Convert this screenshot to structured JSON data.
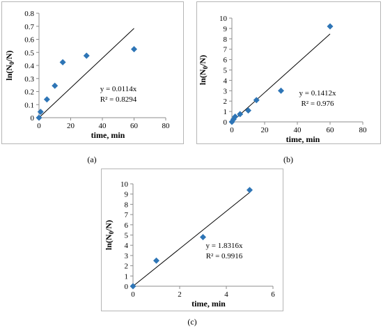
{
  "chart_data": [
    {
      "type": "scatter",
      "caption": "(a)",
      "xlabel": "time, min",
      "ylabel_main": "ln(N",
      "ylabel_sub": "0",
      "ylabel_end": "/N)",
      "xlim": [
        0,
        80
      ],
      "ylim": [
        0,
        0.8
      ],
      "xticks": [
        0,
        20,
        40,
        60,
        80
      ],
      "yticks": [
        0,
        0.1,
        0.2,
        0.3,
        0.4,
        0.5,
        0.6,
        0.7,
        0.8
      ],
      "xtick_labels": [
        "0",
        "20",
        "40",
        "60",
        "80"
      ],
      "ytick_labels": [
        "0",
        "0.1",
        "0.2",
        "0.3",
        "0.4",
        "0.5",
        "0.6",
        "0.7",
        "0.8"
      ],
      "points": [
        {
          "x": 0,
          "y": 0
        },
        {
          "x": 1,
          "y": 0.045
        },
        {
          "x": 5,
          "y": 0.14
        },
        {
          "x": 10,
          "y": 0.245
        },
        {
          "x": 15,
          "y": 0.425
        },
        {
          "x": 30,
          "y": 0.475
        },
        {
          "x": 60,
          "y": 0.525
        }
      ],
      "trendline": {
        "slope": 0.0114,
        "x_range": [
          0,
          60
        ]
      },
      "equation": "y = 0.0114x",
      "r_squared": "R² = 0.8294",
      "grid": false,
      "marker_color": "#2e75b6"
    },
    {
      "type": "scatter",
      "caption": "(b)",
      "xlabel": "time, min",
      "ylabel_main": "ln(N",
      "ylabel_sub": "0",
      "ylabel_end": "/N)",
      "xlim": [
        0,
        80
      ],
      "ylim": [
        0,
        10
      ],
      "xticks": [
        0,
        20,
        40,
        60,
        80
      ],
      "yticks": [
        0,
        1,
        2,
        3,
        4,
        5,
        6,
        7,
        8,
        9,
        10
      ],
      "xtick_labels": [
        "0",
        "20",
        "40",
        "60",
        "80"
      ],
      "ytick_labels": [
        "0",
        "1",
        "2",
        "3",
        "4",
        "5",
        "6",
        "7",
        "8",
        "9",
        "10"
      ],
      "points": [
        {
          "x": 0,
          "y": 0
        },
        {
          "x": 1,
          "y": 0.25
        },
        {
          "x": 2,
          "y": 0.5
        },
        {
          "x": 5,
          "y": 0.75
        },
        {
          "x": 10,
          "y": 1.1
        },
        {
          "x": 15,
          "y": 2.1
        },
        {
          "x": 30,
          "y": 3.0
        },
        {
          "x": 60,
          "y": 9.2
        }
      ],
      "trendline": {
        "slope": 0.1412,
        "x_range": [
          0,
          60
        ]
      },
      "equation": "y = 0.1412x",
      "r_squared": "R² = 0.976",
      "grid": false,
      "marker_color": "#2e75b6"
    },
    {
      "type": "scatter",
      "caption": "(c)",
      "xlabel": "time, min",
      "ylabel_main": "ln(N",
      "ylabel_sub": "0",
      "ylabel_end": "/N)",
      "xlim": [
        0,
        6
      ],
      "ylim": [
        0,
        10
      ],
      "xticks": [
        0,
        2,
        4,
        6
      ],
      "yticks": [
        0,
        1,
        2,
        3,
        4,
        5,
        6,
        7,
        8,
        9,
        10
      ],
      "xtick_labels": [
        "0",
        "2",
        "4",
        "6"
      ],
      "ytick_labels": [
        "0",
        "1",
        "2",
        "3",
        "4",
        "5",
        "6",
        "7",
        "8",
        "9",
        "10"
      ],
      "points": [
        {
          "x": 0,
          "y": 0
        },
        {
          "x": 1,
          "y": 2.5
        },
        {
          "x": 3,
          "y": 4.8
        },
        {
          "x": 5,
          "y": 9.4
        }
      ],
      "trendline": {
        "slope": 1.8316,
        "x_range": [
          0,
          5
        ]
      },
      "equation": "y = 1.8316x",
      "r_squared": "R² = 0.9916",
      "grid": false,
      "marker_color": "#2e75b6"
    }
  ]
}
